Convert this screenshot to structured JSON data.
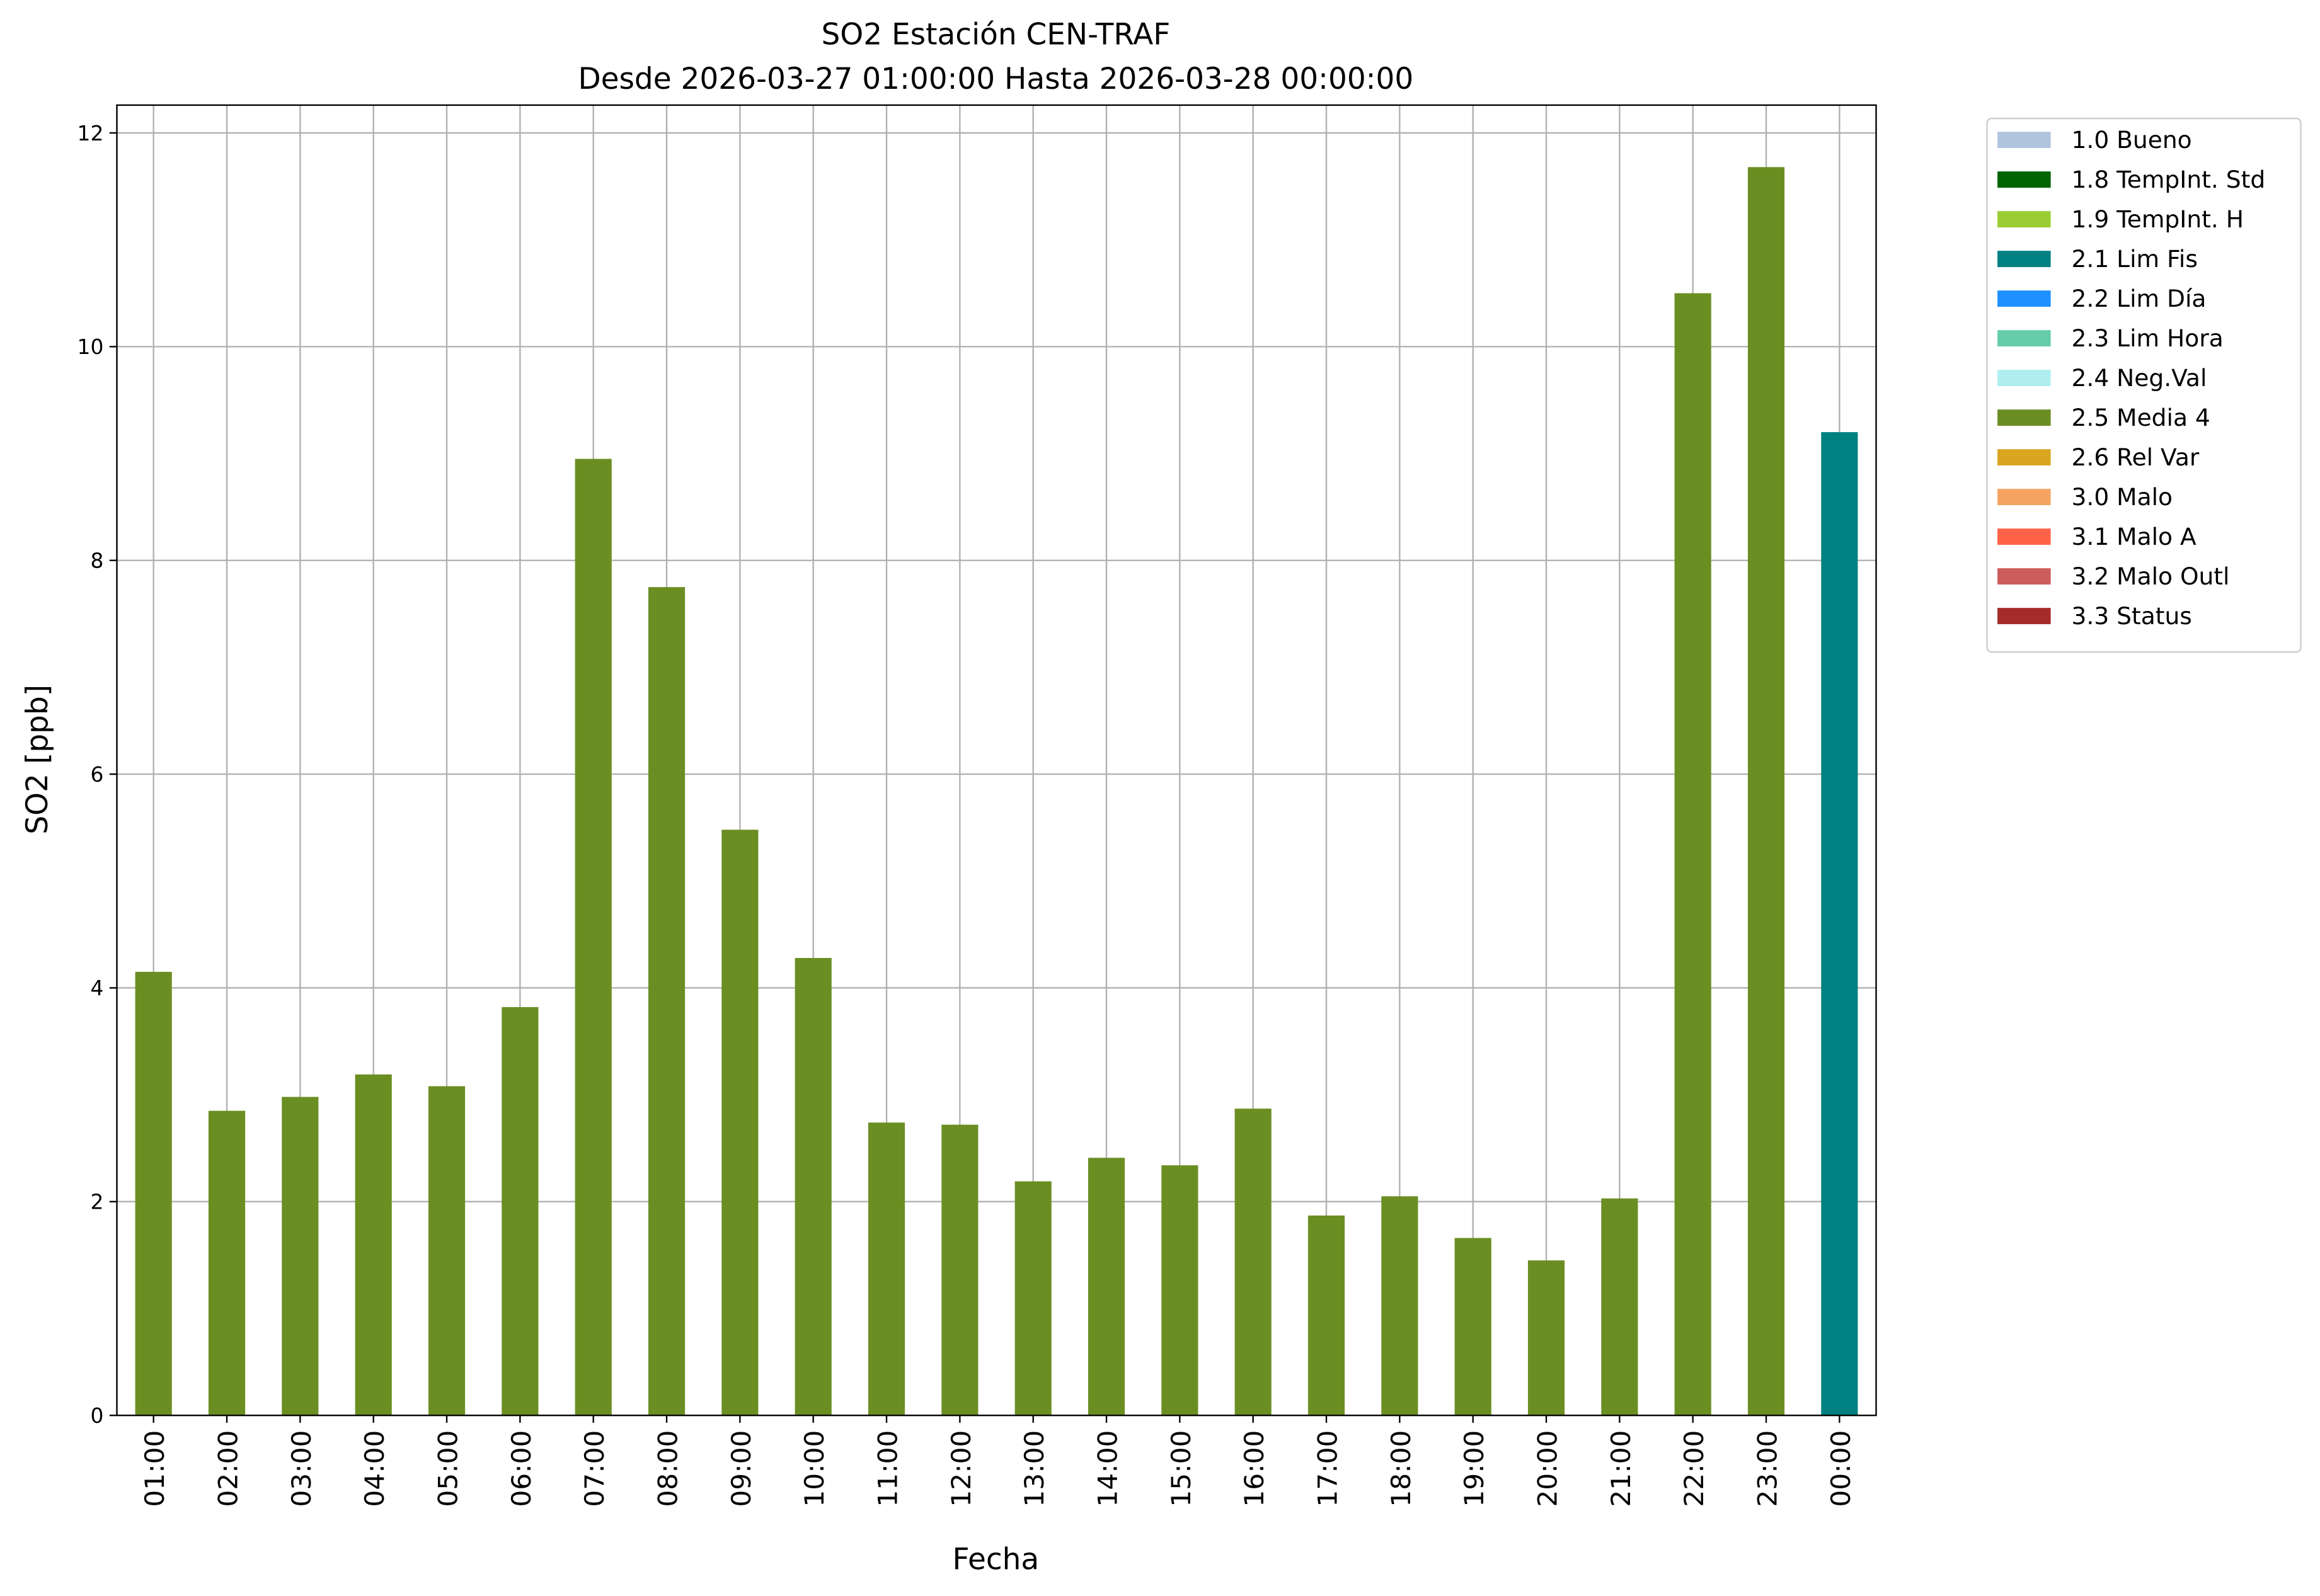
{
  "chart_data": {
    "type": "bar",
    "title": "SO2 Estación CEN-TRAF",
    "subtitle": "Desde 2026-03-27 01:00:00 Hasta 2026-03-28 00:00:00",
    "x_label": "Fecha",
    "y_label": "SO2 [ppb]",
    "categories": [
      "01:00",
      "02:00",
      "03:00",
      "04:00",
      "05:00",
      "06:00",
      "07:00",
      "08:00",
      "09:00",
      "10:00",
      "11:00",
      "12:00",
      "13:00",
      "14:00",
      "15:00",
      "16:00",
      "17:00",
      "18:00",
      "19:00",
      "20:00",
      "21:00",
      "22:00",
      "23:00",
      "00:00"
    ],
    "ylim": [
      0,
      12.26
    ],
    "yticks": [
      0,
      2,
      4,
      6,
      8,
      10,
      12
    ],
    "grid": true,
    "legend": "outside-upper-right",
    "series": [
      {
        "name": "1.0 Bueno",
        "color": "#b0c4de",
        "values": [
          null,
          null,
          null,
          null,
          null,
          null,
          null,
          null,
          null,
          null,
          null,
          null,
          null,
          null,
          null,
          null,
          null,
          null,
          null,
          null,
          null,
          null,
          null,
          null
        ]
      },
      {
        "name": "1.8 TempInt. Std",
        "color": "#006400",
        "values": [
          null,
          null,
          null,
          null,
          null,
          null,
          null,
          null,
          null,
          null,
          null,
          null,
          null,
          null,
          null,
          null,
          null,
          null,
          null,
          null,
          null,
          null,
          null,
          null
        ]
      },
      {
        "name": "1.9 TempInt. H",
        "color": "#9acd32",
        "values": [
          null,
          null,
          null,
          null,
          null,
          null,
          null,
          null,
          null,
          null,
          null,
          null,
          null,
          null,
          null,
          null,
          null,
          null,
          null,
          null,
          null,
          null,
          null,
          null
        ]
      },
      {
        "name": "2.1 Lim Fis",
        "color": "#008080",
        "values": [
          null,
          null,
          null,
          null,
          null,
          null,
          null,
          null,
          null,
          null,
          null,
          null,
          null,
          null,
          null,
          null,
          null,
          null,
          null,
          null,
          null,
          null,
          null,
          9.2
        ]
      },
      {
        "name": "2.2 Lim Día",
        "color": "#1e90ff",
        "values": [
          null,
          null,
          null,
          null,
          null,
          null,
          null,
          null,
          null,
          null,
          null,
          null,
          null,
          null,
          null,
          null,
          null,
          null,
          null,
          null,
          null,
          null,
          null,
          null
        ]
      },
      {
        "name": "2.3 Lim Hora",
        "color": "#66cdaa",
        "values": [
          null,
          null,
          null,
          null,
          null,
          null,
          null,
          null,
          null,
          null,
          null,
          null,
          null,
          null,
          null,
          null,
          null,
          null,
          null,
          null,
          null,
          null,
          null,
          null
        ]
      },
      {
        "name": "2.4 Neg.Val",
        "color": "#afeeee",
        "values": [
          null,
          null,
          null,
          null,
          null,
          null,
          null,
          null,
          null,
          null,
          null,
          null,
          null,
          null,
          null,
          null,
          null,
          null,
          null,
          null,
          null,
          null,
          null,
          null
        ]
      },
      {
        "name": "2.5 Media 4",
        "color": "#6b8e23",
        "values": [
          4.15,
          2.85,
          2.98,
          3.19,
          3.08,
          3.82,
          8.95,
          7.75,
          5.48,
          4.28,
          2.74,
          2.72,
          2.19,
          2.41,
          2.34,
          2.87,
          1.87,
          2.05,
          1.66,
          1.45,
          2.03,
          10.5,
          11.68,
          null
        ]
      },
      {
        "name": "2.6 Rel Var",
        "color": "#daa520",
        "values": [
          null,
          null,
          null,
          null,
          null,
          null,
          null,
          null,
          null,
          null,
          null,
          null,
          null,
          null,
          null,
          null,
          null,
          null,
          null,
          null,
          null,
          null,
          null,
          null
        ]
      },
      {
        "name": "3.0 Malo",
        "color": "#f4a460",
        "values": [
          null,
          null,
          null,
          null,
          null,
          null,
          null,
          null,
          null,
          null,
          null,
          null,
          null,
          null,
          null,
          null,
          null,
          null,
          null,
          null,
          null,
          null,
          null,
          null
        ]
      },
      {
        "name": "3.1 Malo A",
        "color": "#ff6347",
        "values": [
          null,
          null,
          null,
          null,
          null,
          null,
          null,
          null,
          null,
          null,
          null,
          null,
          null,
          null,
          null,
          null,
          null,
          null,
          null,
          null,
          null,
          null,
          null,
          null
        ]
      },
      {
        "name": "3.2 Malo Outl",
        "color": "#cd5c5c",
        "values": [
          null,
          null,
          null,
          null,
          null,
          null,
          null,
          null,
          null,
          null,
          null,
          null,
          null,
          null,
          null,
          null,
          null,
          null,
          null,
          null,
          null,
          null,
          null,
          null
        ]
      },
      {
        "name": "3.3 Status",
        "color": "#a52a2a",
        "values": [
          null,
          null,
          null,
          null,
          null,
          null,
          null,
          null,
          null,
          null,
          null,
          null,
          null,
          null,
          null,
          null,
          null,
          null,
          null,
          null,
          null,
          null,
          null,
          null
        ]
      }
    ]
  }
}
